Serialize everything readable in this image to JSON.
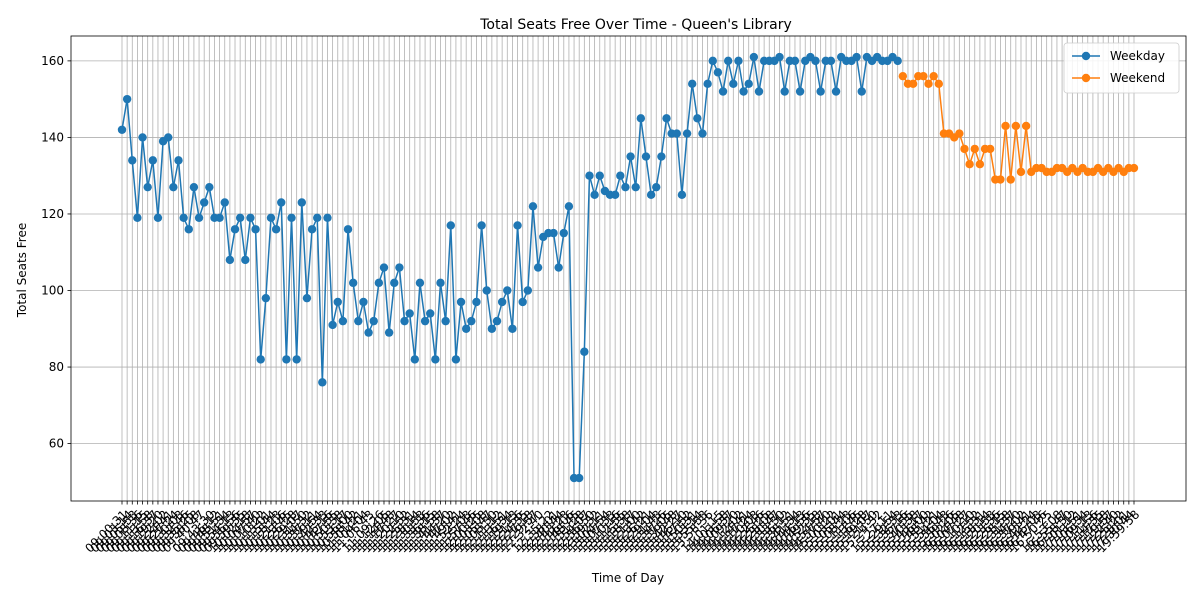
{
  "chart_data": {
    "type": "line",
    "title": "Total Seats Free Over Time - Queen's Library",
    "xlabel": "Time of Day",
    "ylabel": "Total Seats Free",
    "ylim": [
      45,
      166.5
    ],
    "yticks": [
      60,
      80,
      100,
      120,
      140,
      160
    ],
    "grid": true,
    "legend": "top-right",
    "x_tick_labels_note": "",
    "series": [
      {
        "name": "Weekday",
        "color": "#1f77b4",
        "values": [
          142,
          150,
          134,
          119,
          140,
          127,
          134,
          119,
          139,
          140,
          127,
          134,
          119,
          116,
          127,
          119,
          123,
          127,
          119,
          119,
          123,
          108,
          116,
          119,
          108,
          119,
          116,
          82,
          98,
          119,
          116,
          123,
          82,
          119,
          82,
          123,
          98,
          116,
          119,
          76,
          119,
          91,
          97,
          92,
          116,
          102,
          92,
          97,
          89,
          92,
          102,
          106,
          89,
          102,
          106,
          92,
          94,
          82,
          102,
          92,
          94,
          82,
          102,
          92,
          117,
          82,
          97,
          90,
          92,
          97,
          117,
          100,
          90,
          92,
          97,
          100,
          90,
          117,
          97,
          100,
          122,
          106,
          114,
          115,
          115,
          106,
          115,
          122,
          51,
          51,
          84,
          130,
          125,
          130,
          126,
          125,
          125,
          130,
          127,
          135,
          127,
          145,
          135,
          125,
          127,
          135,
          145,
          141,
          141,
          125,
          141,
          154,
          145,
          141,
          154,
          160,
          157,
          152,
          160,
          154,
          160,
          152,
          154,
          161,
          152,
          160,
          160,
          160,
          161,
          152,
          160,
          160,
          152,
          160,
          161,
          160,
          152,
          160,
          160,
          152,
          161,
          160,
          160,
          161,
          152,
          161,
          160,
          161,
          160,
          160,
          161,
          160
        ]
      },
      {
        "name": "Weekend",
        "color": "#ff7f0e",
        "values": [
          156,
          154,
          154,
          156,
          156,
          154,
          156,
          154,
          141,
          141,
          140,
          141,
          137,
          133,
          137,
          133,
          137,
          137,
          129,
          129,
          143,
          129,
          143,
          131,
          143,
          131,
          132,
          132,
          131,
          131,
          132,
          132,
          131,
          132,
          131,
          132,
          131,
          131,
          132,
          131,
          132,
          131,
          132,
          131,
          132,
          132
        ]
      }
    ],
    "x_tick_labels": [
      "09:00:31",
      "09:03:14",
      "09:05:53",
      "09:08:36",
      "09:11:15",
      "09:13:58",
      "09:16:37",
      "09:19:20",
      "09:22:02",
      "09:24:41",
      "09:27:24",
      "09:30:03",
      "09:32:46",
      "09:35:25",
      "09:38:08",
      "09:40:47",
      "09:43:30",
      "09:46:12",
      "09:48:51",
      "09:51:34",
      "09:54:13",
      "09:56:56",
      "09:59:35",
      "10:02:18",
      "10:04:57",
      "10:07:40",
      "10:10:22",
      "10:13:01",
      "10:15:44",
      "10:18:23",
      "10:21:06",
      "10:23:45",
      "10:26:28",
      "10:29:07",
      "10:31:50",
      "10:34:32",
      "10:37:11",
      "10:39:54",
      "10:42:33",
      "10:45:16",
      "10:47:55",
      "10:50:38",
      "10:53:17",
      "10:56:00",
      "10:58:42",
      "11:01:21",
      "11:04:04",
      "11:06:43",
      "11:09:26",
      "11:12:05",
      "11:14:48",
      "11:17:27",
      "11:20:10",
      "11:22:52",
      "11:25:31",
      "11:28:14",
      "11:30:53",
      "11:33:36",
      "11:36:15",
      "11:38:58",
      "11:41:37",
      "11:44:20",
      "11:47:02",
      "11:49:41",
      "11:52:24",
      "11:55:03",
      "11:57:46",
      "12:00:25",
      "12:03:08",
      "12:05:47",
      "12:08:30",
      "12:11:12",
      "12:13:51",
      "12:16:34",
      "12:19:13",
      "12:21:56",
      "12:24:35",
      "12:27:18",
      "12:29:57",
      "12:32:40",
      "12:35:22",
      "12:38:01",
      "12:40:44",
      "12:43:23",
      "12:46:06",
      "12:48:45",
      "12:51:28",
      "12:54:07",
      "12:56:50",
      "12:59:32",
      "13:02:11",
      "13:04:54",
      "13:07:33",
      "13:10:16",
      "13:12:55",
      "13:15:38",
      "13:18:17",
      "13:21:00",
      "13:23:42",
      "13:26:21",
      "13:29:04",
      "13:31:43",
      "13:34:26",
      "13:37:05",
      "13:39:48",
      "13:42:27",
      "13:45:10",
      "13:47:52",
      "13:50:31",
      "13:53:14",
      "13:55:53",
      "13:58:36",
      "14:01:15",
      "14:03:58",
      "14:06:37",
      "14:09:20",
      "14:12:02",
      "14:14:41",
      "14:17:24",
      "14:20:03",
      "14:22:46",
      "14:25:25",
      "14:28:08",
      "14:30:47",
      "14:33:30",
      "14:36:12",
      "14:38:51",
      "14:41:34",
      "14:44:13",
      "14:46:56",
      "14:49:35",
      "14:52:18",
      "14:54:57",
      "14:57:40",
      "15:00:22",
      "15:03:01",
      "15:05:44",
      "15:08:23",
      "15:11:06",
      "15:13:45",
      "15:16:28",
      "15:19:07",
      "15:21:50",
      "15:24:32",
      "15:27:11",
      "15:29:54",
      "15:32:33",
      "15:35:16",
      "15:37:55",
      "15:40:38",
      "15:43:17",
      "15:46:00",
      "15:48:42",
      "15:51:21",
      "15:54:04",
      "15:56:43",
      "15:59:26",
      "16:02:05",
      "16:04:48",
      "16:07:27",
      "16:10:10",
      "16:12:52",
      "16:15:31",
      "16:18:14",
      "16:20:53",
      "16:23:36",
      "16:26:15",
      "16:28:58",
      "16:31:37",
      "16:34:20",
      "16:37:02",
      "16:39:41",
      "16:42:24",
      "16:45:03",
      "16:47:46",
      "16:50:25",
      "16:53:08",
      "16:55:47",
      "16:58:30",
      "17:01:12",
      "17:03:51",
      "17:06:34",
      "17:09:13",
      "17:11:56",
      "17:14:35",
      "17:17:18",
      "17:19:57",
      "17:22:40",
      "17:25:22",
      "17:28:01",
      "17:30:44",
      "19:59:58"
    ]
  }
}
